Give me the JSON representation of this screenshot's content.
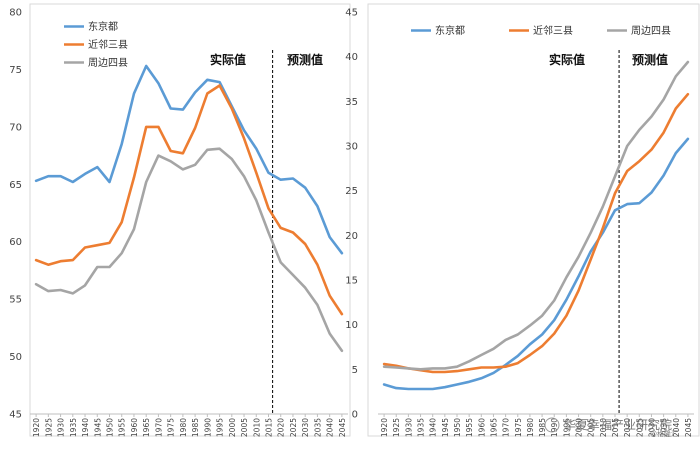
{
  "chart_data": [
    {
      "type": "line",
      "title": "",
      "xlabel": "",
      "ylabel": "",
      "x": [
        "1920",
        "1925",
        "1930",
        "1935",
        "1940",
        "1945",
        "1950",
        "1955",
        "1960",
        "1965",
        "1970",
        "1975",
        "1980",
        "1985",
        "1990",
        "1995",
        "2000",
        "2005",
        "2010",
        "2015",
        "2020",
        "2025",
        "2030",
        "2035",
        "2040",
        "2045"
      ],
      "ylim": [
        45,
        80
      ],
      "yticks": [
        45,
        50,
        55,
        60,
        65,
        70,
        75,
        80
      ],
      "grid": false,
      "legend_position": "top-left",
      "divider_after": "2015",
      "region_labels": {
        "actual": "实际值",
        "forecast": "预测值"
      },
      "series": [
        {
          "name": "东京都",
          "color": "#5b9bd5",
          "values": [
            65.3,
            65.7,
            65.7,
            65.2,
            65.9,
            66.5,
            65.2,
            68.5,
            72.9,
            75.3,
            73.8,
            71.6,
            71.5,
            73.0,
            74.1,
            73.9,
            71.8,
            69.7,
            68.1,
            66.0,
            65.4,
            65.5,
            64.7,
            63.1,
            60.4,
            59.0
          ]
        },
        {
          "name": "近邻三县",
          "color": "#ed7d31",
          "values": [
            58.4,
            58.0,
            58.3,
            58.4,
            59.5,
            59.7,
            59.9,
            61.7,
            65.6,
            70.0,
            70.0,
            67.9,
            67.7,
            69.9,
            72.9,
            73.6,
            71.6,
            69.0,
            66.0,
            62.9,
            61.2,
            60.8,
            59.8,
            58.0,
            55.3,
            53.7
          ]
        },
        {
          "name": "周边四县",
          "color": "#a5a5a5",
          "values": [
            56.3,
            55.7,
            55.8,
            55.5,
            56.2,
            57.8,
            57.8,
            59.0,
            61.1,
            65.2,
            67.5,
            67.0,
            66.3,
            66.7,
            68.0,
            68.1,
            67.2,
            65.7,
            63.6,
            60.8,
            58.2,
            57.1,
            56.0,
            54.5,
            52.0,
            50.5
          ]
        }
      ]
    },
    {
      "type": "line",
      "title": "",
      "xlabel": "",
      "ylabel": "",
      "x": [
        "1920",
        "1925",
        "1930",
        "1935",
        "1940",
        "1945",
        "1950",
        "1955",
        "1960",
        "1965",
        "1970",
        "1975",
        "1980",
        "1985",
        "1990",
        "1995",
        "2000",
        "2005",
        "2010",
        "2015",
        "2020",
        "2025",
        "2030",
        "2035",
        "2040",
        "2045"
      ],
      "ylim": [
        0,
        45
      ],
      "yticks": [
        0,
        5,
        10,
        15,
        20,
        25,
        30,
        35,
        40,
        45
      ],
      "grid": false,
      "legend_position": "top",
      "divider_after": "2015",
      "region_labels": {
        "actual": "实际值",
        "forecast": "预测值"
      },
      "series": [
        {
          "name": "东京都",
          "color": "#5b9bd5",
          "values": [
            3.3,
            2.9,
            2.8,
            2.8,
            2.8,
            3.0,
            3.3,
            3.6,
            4.0,
            4.6,
            5.5,
            6.5,
            7.8,
            8.9,
            10.5,
            12.8,
            15.4,
            18.2,
            20.3,
            22.8,
            23.5,
            23.6,
            24.8,
            26.7,
            29.2,
            30.8
          ]
        },
        {
          "name": "近邻三县",
          "color": "#ed7d31",
          "values": [
            5.6,
            5.4,
            5.1,
            4.9,
            4.7,
            4.7,
            4.8,
            5.0,
            5.2,
            5.2,
            5.3,
            5.7,
            6.6,
            7.6,
            9.0,
            11.0,
            13.8,
            17.3,
            20.8,
            24.7,
            27.2,
            28.3,
            29.6,
            31.5,
            34.2,
            35.8
          ]
        },
        {
          "name": "周边四县",
          "color": "#a5a5a5",
          "values": [
            5.3,
            5.2,
            5.1,
            5.0,
            5.1,
            5.1,
            5.3,
            5.9,
            6.6,
            7.3,
            8.3,
            8.9,
            9.9,
            11.0,
            12.7,
            15.3,
            17.6,
            20.3,
            23.2,
            26.6,
            30.0,
            31.8,
            33.3,
            35.2,
            37.8,
            39.4
          ]
        }
      ]
    }
  ],
  "watermark": "华夏幸福产业研究院",
  "watermark_sub": "@格隆汇"
}
